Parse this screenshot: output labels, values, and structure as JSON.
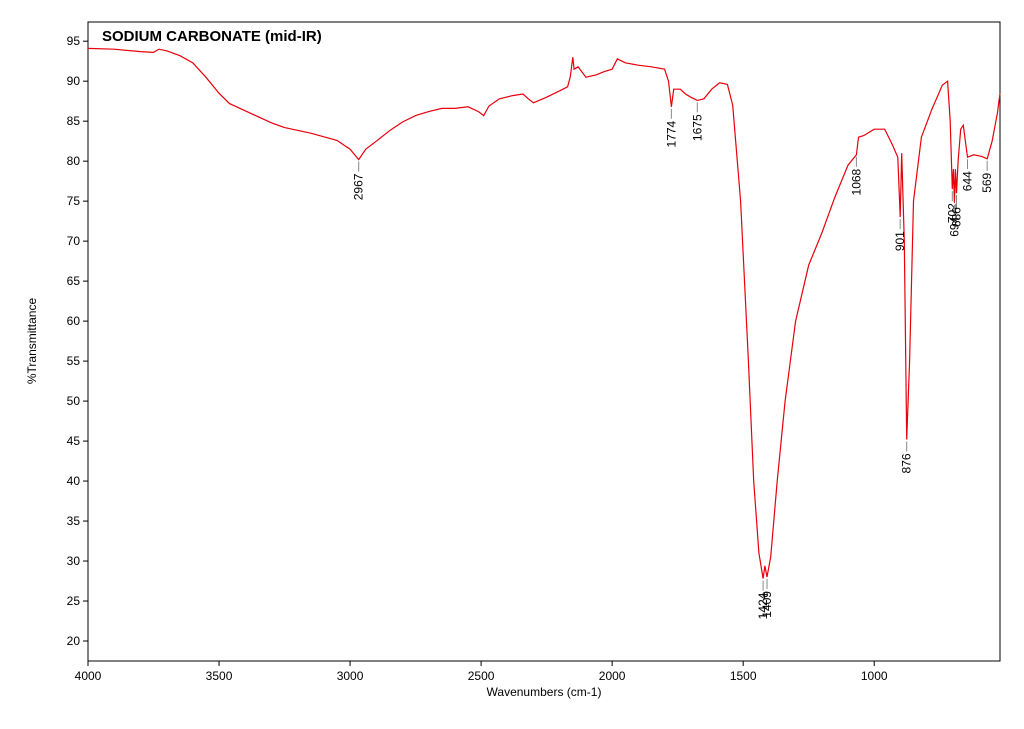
{
  "chart_data": {
    "type": "line",
    "title": "SODIUM CARBONATE (mid-IR)",
    "x_label": "Wavenumbers (cm-1)",
    "y_label": "%Transmittance",
    "color": "#e8000b",
    "xlim": [
      4000,
      520
    ],
    "ylim": [
      17.5,
      97.4
    ],
    "xticks": [
      4000,
      3500,
      3000,
      2500,
      2000,
      1500,
      1000
    ],
    "yticks": [
      20,
      25,
      30,
      35,
      40,
      45,
      50,
      55,
      60,
      65,
      70,
      75,
      80,
      85,
      90,
      95
    ],
    "x": [
      4000,
      3900,
      3800,
      3750,
      3730,
      3700,
      3650,
      3600,
      3550,
      3500,
      3460,
      3400,
      3300,
      3250,
      3150,
      3050,
      3000,
      2967,
      2940,
      2900,
      2850,
      2800,
      2750,
      2700,
      2650,
      2600,
      2550,
      2510,
      2490,
      2470,
      2430,
      2380,
      2340,
      2320,
      2300,
      2250,
      2200,
      2170,
      2160,
      2150,
      2145,
      2130,
      2100,
      2060,
      2030,
      2000,
      1980,
      1950,
      1900,
      1850,
      1800,
      1785,
      1774,
      1765,
      1740,
      1720,
      1700,
      1675,
      1650,
      1620,
      1590,
      1560,
      1540,
      1510,
      1480,
      1460,
      1440,
      1424,
      1417,
      1409,
      1395,
      1370,
      1340,
      1300,
      1250,
      1200,
      1150,
      1100,
      1068,
      1060,
      1040,
      1000,
      960,
      930,
      910,
      901,
      895,
      885,
      876,
      865,
      850,
      820,
      780,
      740,
      720,
      710,
      702,
      698,
      694,
      690,
      686,
      680,
      670,
      660,
      650,
      644,
      620,
      590,
      569,
      550,
      530,
      520
    ],
    "values": [
      94.1,
      94.0,
      93.7,
      93.6,
      94.0,
      93.8,
      93.2,
      92.3,
      90.5,
      88.5,
      87.2,
      86.3,
      84.8,
      84.2,
      83.5,
      82.6,
      81.5,
      80.2,
      81.5,
      82.5,
      83.8,
      84.9,
      85.7,
      86.2,
      86.6,
      86.6,
      86.8,
      86.2,
      85.7,
      86.9,
      87.8,
      88.2,
      88.4,
      87.8,
      87.3,
      88.0,
      88.8,
      89.3,
      90.5,
      93.0,
      91.5,
      91.8,
      90.5,
      90.8,
      91.2,
      91.5,
      92.8,
      92.3,
      92.0,
      91.8,
      91.5,
      90.0,
      86.8,
      89.0,
      89.0,
      88.4,
      88.0,
      87.6,
      87.8,
      89.0,
      89.8,
      89.6,
      87.0,
      75.0,
      55.0,
      40.0,
      31.0,
      27.8,
      29.4,
      28.0,
      30.5,
      40.0,
      50.0,
      60.0,
      67.0,
      71.0,
      75.5,
      79.5,
      80.8,
      83.0,
      83.2,
      84.0,
      84.0,
      82.0,
      80.5,
      73.0,
      81.0,
      70.0,
      45.2,
      55.0,
      75.0,
      83.0,
      86.5,
      89.5,
      90.0,
      85.0,
      76.5,
      79.0,
      74.8,
      79.0,
      76.0,
      80.0,
      84.0,
      84.5,
      82.0,
      80.5,
      80.8,
      80.6,
      80.3,
      82.5,
      86.0,
      88.5
    ],
    "peaks": [
      2967,
      1774,
      1675,
      1424,
      1409,
      1068,
      901,
      876,
      702,
      694,
      686,
      644,
      569
    ]
  }
}
